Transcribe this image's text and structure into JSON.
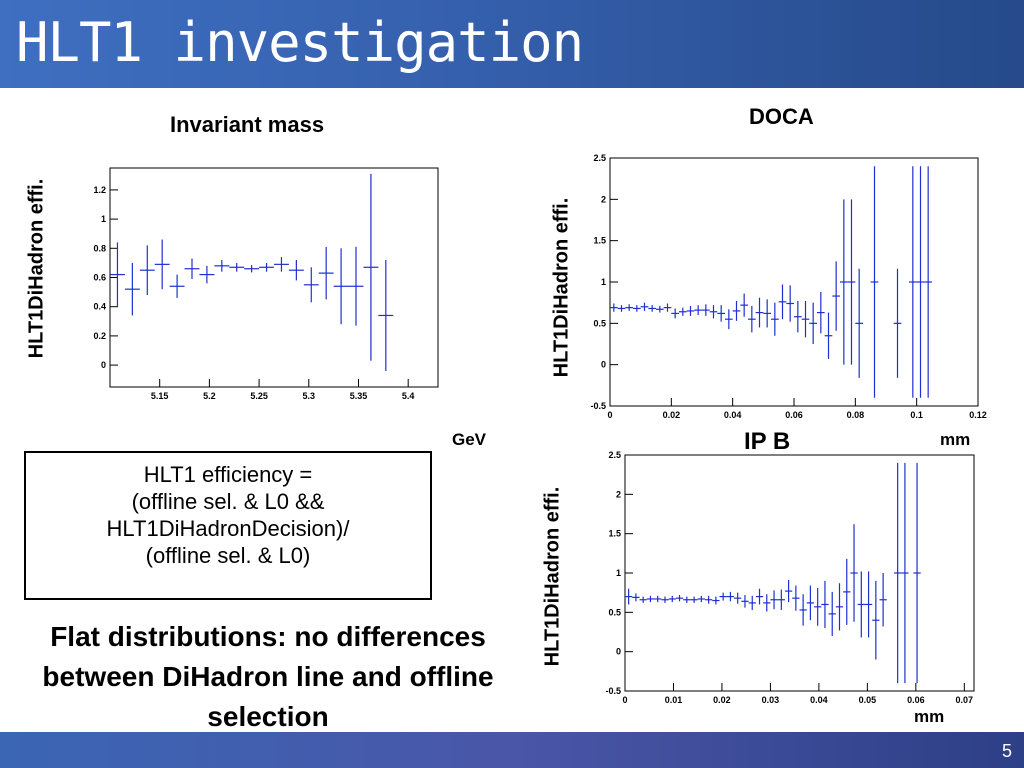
{
  "slide": {
    "title": "HLT1 investigation",
    "page_number": "5"
  },
  "efficiency_box": {
    "lines": [
      "HLT1 efficiency =",
      "(offline sel. & L0 &&",
      "HLT1DiHadronDecision)/",
      "(offline sel. & L0)"
    ]
  },
  "conclusion": "Flat distributions: no differences between DiHadron line and offline selection",
  "chart_data": [
    {
      "type": "scatter",
      "title": "Invariant mass",
      "xlabel": "GeV",
      "ylabel": "HLT1DiHadron effi.",
      "xlim": [
        5.1,
        5.43
      ],
      "ylim": [
        -0.15,
        1.35
      ],
      "xticks": [
        5.15,
        5.2,
        5.25,
        5.3,
        5.35,
        5.4
      ],
      "xtick_labels": [
        "5.15",
        "5.2",
        "5.25",
        "5.3",
        "5.35",
        "5.4"
      ],
      "yticks": [
        0,
        0.2,
        0.4,
        0.6,
        0.8,
        1,
        1.2
      ],
      "ytick_labels": [
        "0",
        "0.2",
        "0.4",
        "0.6",
        "0.8",
        "1",
        "1.2"
      ],
      "bin_half_width": 0.0075,
      "points": [
        {
          "x": 5.1075,
          "y": 0.62,
          "err": 0.22
        },
        {
          "x": 5.1225,
          "y": 0.52,
          "err": 0.18
        },
        {
          "x": 5.1375,
          "y": 0.65,
          "err": 0.17
        },
        {
          "x": 5.1525,
          "y": 0.69,
          "err": 0.17
        },
        {
          "x": 5.1675,
          "y": 0.54,
          "err": 0.08
        },
        {
          "x": 5.1825,
          "y": 0.66,
          "err": 0.07
        },
        {
          "x": 5.1975,
          "y": 0.62,
          "err": 0.06
        },
        {
          "x": 5.2125,
          "y": 0.68,
          "err": 0.04
        },
        {
          "x": 5.2275,
          "y": 0.67,
          "err": 0.03
        },
        {
          "x": 5.2425,
          "y": 0.66,
          "err": 0.025
        },
        {
          "x": 5.2575,
          "y": 0.67,
          "err": 0.03
        },
        {
          "x": 5.2725,
          "y": 0.69,
          "err": 0.05
        },
        {
          "x": 5.2875,
          "y": 0.65,
          "err": 0.07
        },
        {
          "x": 5.3025,
          "y": 0.55,
          "err": 0.12
        },
        {
          "x": 5.3175,
          "y": 0.63,
          "err": 0.18
        },
        {
          "x": 5.3325,
          "y": 0.54,
          "err": 0.26
        },
        {
          "x": 5.3475,
          "y": 0.54,
          "err": 0.27
        },
        {
          "x": 5.3625,
          "y": 0.67,
          "err": 0.64
        },
        {
          "x": 5.3775,
          "y": 0.34,
          "err": 0.38
        }
      ]
    },
    {
      "type": "scatter",
      "title": "DOCA",
      "xlabel": "mm",
      "ylabel": "HLT1DiHadron effi.",
      "xlim": [
        0,
        0.12
      ],
      "ylim": [
        -0.5,
        2.5
      ],
      "xticks": [
        0,
        0.02,
        0.04,
        0.06,
        0.08,
        0.1,
        0.12
      ],
      "xtick_labels": [
        "0",
        "0.02",
        "0.04",
        "0.06",
        "0.08",
        "0.1",
        "0.12"
      ],
      "yticks": [
        -0.5,
        0,
        0.5,
        1,
        1.5,
        2,
        2.5
      ],
      "ytick_labels": [
        "-0.5",
        "0",
        "0.5",
        "1",
        "1.5",
        "2",
        "2.5"
      ],
      "bin_half_width": 0.00125,
      "points": [
        {
          "x": 0.00125,
          "y": 0.69,
          "err": 0.05
        },
        {
          "x": 0.00375,
          "y": 0.68,
          "err": 0.04
        },
        {
          "x": 0.00625,
          "y": 0.69,
          "err": 0.04
        },
        {
          "x": 0.00875,
          "y": 0.68,
          "err": 0.04
        },
        {
          "x": 0.01125,
          "y": 0.7,
          "err": 0.05
        },
        {
          "x": 0.01375,
          "y": 0.68,
          "err": 0.04
        },
        {
          "x": 0.01625,
          "y": 0.67,
          "err": 0.04
        },
        {
          "x": 0.01875,
          "y": 0.69,
          "err": 0.05
        },
        {
          "x": 0.02125,
          "y": 0.62,
          "err": 0.06
        },
        {
          "x": 0.02375,
          "y": 0.64,
          "err": 0.05
        },
        {
          "x": 0.02625,
          "y": 0.65,
          "err": 0.06
        },
        {
          "x": 0.02875,
          "y": 0.66,
          "err": 0.06
        },
        {
          "x": 0.03125,
          "y": 0.66,
          "err": 0.07
        },
        {
          "x": 0.03375,
          "y": 0.64,
          "err": 0.08
        },
        {
          "x": 0.03625,
          "y": 0.62,
          "err": 0.1
        },
        {
          "x": 0.03875,
          "y": 0.55,
          "err": 0.12
        },
        {
          "x": 0.04125,
          "y": 0.65,
          "err": 0.12
        },
        {
          "x": 0.04375,
          "y": 0.72,
          "err": 0.14
        },
        {
          "x": 0.04625,
          "y": 0.55,
          "err": 0.16
        },
        {
          "x": 0.04875,
          "y": 0.63,
          "err": 0.18
        },
        {
          "x": 0.05125,
          "y": 0.62,
          "err": 0.17
        },
        {
          "x": 0.05375,
          "y": 0.55,
          "err": 0.2
        },
        {
          "x": 0.05625,
          "y": 0.76,
          "err": 0.21
        },
        {
          "x": 0.05875,
          "y": 0.74,
          "err": 0.22
        },
        {
          "x": 0.06125,
          "y": 0.58,
          "err": 0.19
        },
        {
          "x": 0.06375,
          "y": 0.55,
          "err": 0.22
        },
        {
          "x": 0.06625,
          "y": 0.5,
          "err": 0.25
        },
        {
          "x": 0.06875,
          "y": 0.63,
          "err": 0.25
        },
        {
          "x": 0.07125,
          "y": 0.35,
          "err": 0.28
        },
        {
          "x": 0.07375,
          "y": 0.83,
          "err": 0.42
        },
        {
          "x": 0.07625,
          "y": 1.0,
          "err": 1.0
        },
        {
          "x": 0.07875,
          "y": 1.0,
          "err": 1.0
        },
        {
          "x": 0.08125,
          "y": 0.5,
          "err": 0.66
        },
        {
          "x": 0.08625,
          "y": 1.0,
          "err": 1.4
        },
        {
          "x": 0.09375,
          "y": 0.5,
          "err": 0.66
        },
        {
          "x": 0.09875,
          "y": 1.0,
          "err": 1.4
        },
        {
          "x": 0.10125,
          "y": 1.0,
          "err": 1.4
        },
        {
          "x": 0.10375,
          "y": 1.0,
          "err": 1.4
        }
      ]
    },
    {
      "type": "scatter",
      "title": "IP B",
      "xlabel": "mm",
      "ylabel": "HLT1DiHadron effi.",
      "xlim": [
        0,
        0.072
      ],
      "ylim": [
        -0.5,
        2.5
      ],
      "xticks": [
        0,
        0.01,
        0.02,
        0.03,
        0.04,
        0.05,
        0.06,
        0.07
      ],
      "xtick_labels": [
        "0",
        "0.01",
        "0.02",
        "0.03",
        "0.04",
        "0.05",
        "0.06",
        "0.07"
      ],
      "yticks": [
        -0.5,
        0,
        0.5,
        1,
        1.5,
        2,
        2.5
      ],
      "ytick_labels": [
        "-0.5",
        "0",
        "0.5",
        "1",
        "1.5",
        "2",
        "2.5"
      ],
      "bin_half_width": 0.00075,
      "points": [
        {
          "x": 0.00075,
          "y": 0.7,
          "err": 0.1
        },
        {
          "x": 0.00225,
          "y": 0.69,
          "err": 0.05
        },
        {
          "x": 0.00375,
          "y": 0.66,
          "err": 0.04
        },
        {
          "x": 0.00525,
          "y": 0.67,
          "err": 0.04
        },
        {
          "x": 0.00675,
          "y": 0.67,
          "err": 0.04
        },
        {
          "x": 0.00825,
          "y": 0.66,
          "err": 0.04
        },
        {
          "x": 0.00975,
          "y": 0.67,
          "err": 0.04
        },
        {
          "x": 0.01125,
          "y": 0.68,
          "err": 0.04
        },
        {
          "x": 0.01275,
          "y": 0.66,
          "err": 0.04
        },
        {
          "x": 0.01425,
          "y": 0.66,
          "err": 0.04
        },
        {
          "x": 0.01575,
          "y": 0.67,
          "err": 0.04
        },
        {
          "x": 0.01725,
          "y": 0.66,
          "err": 0.05
        },
        {
          "x": 0.01875,
          "y": 0.65,
          "err": 0.05
        },
        {
          "x": 0.02025,
          "y": 0.7,
          "err": 0.05
        },
        {
          "x": 0.02175,
          "y": 0.7,
          "err": 0.06
        },
        {
          "x": 0.02325,
          "y": 0.68,
          "err": 0.07
        },
        {
          "x": 0.02475,
          "y": 0.64,
          "err": 0.08
        },
        {
          "x": 0.02625,
          "y": 0.62,
          "err": 0.09
        },
        {
          "x": 0.02775,
          "y": 0.7,
          "err": 0.1
        },
        {
          "x": 0.02925,
          "y": 0.62,
          "err": 0.11
        },
        {
          "x": 0.03075,
          "y": 0.66,
          "err": 0.12
        },
        {
          "x": 0.03225,
          "y": 0.66,
          "err": 0.13
        },
        {
          "x": 0.03375,
          "y": 0.77,
          "err": 0.14
        },
        {
          "x": 0.03525,
          "y": 0.68,
          "err": 0.16
        },
        {
          "x": 0.03675,
          "y": 0.53,
          "err": 0.2
        },
        {
          "x": 0.03825,
          "y": 0.62,
          "err": 0.22
        },
        {
          "x": 0.03975,
          "y": 0.57,
          "err": 0.24
        },
        {
          "x": 0.04125,
          "y": 0.6,
          "err": 0.3
        },
        {
          "x": 0.04275,
          "y": 0.48,
          "err": 0.28
        },
        {
          "x": 0.04425,
          "y": 0.57,
          "err": 0.3
        },
        {
          "x": 0.04575,
          "y": 0.76,
          "err": 0.42
        },
        {
          "x": 0.04725,
          "y": 1.0,
          "err": 0.62
        },
        {
          "x": 0.04875,
          "y": 0.6,
          "err": 0.42
        },
        {
          "x": 0.05025,
          "y": 0.6,
          "err": 0.42
        },
        {
          "x": 0.05175,
          "y": 0.4,
          "err": 0.5
        },
        {
          "x": 0.05325,
          "y": 0.66,
          "err": 0.34
        },
        {
          "x": 0.05625,
          "y": 1.0,
          "err": 1.4
        },
        {
          "x": 0.05775,
          "y": 1.0,
          "err": 1.4
        },
        {
          "x": 0.06025,
          "y": 1.0,
          "err": 1.4
        }
      ]
    }
  ]
}
